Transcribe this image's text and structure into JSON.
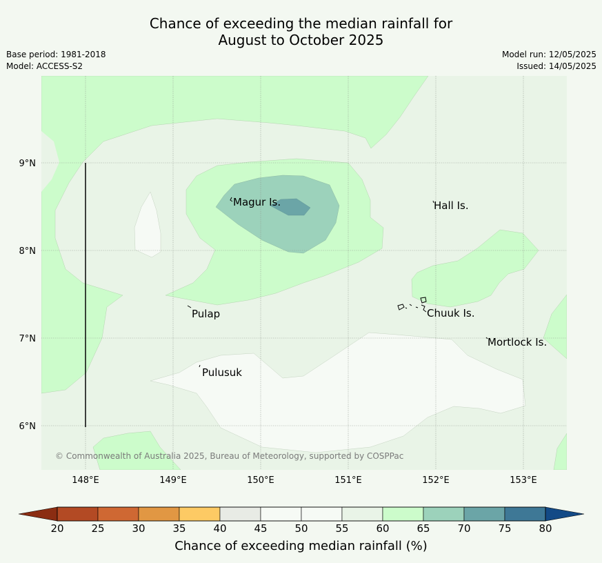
{
  "title": {
    "line1": "Chance of exceeding the median rainfall for",
    "line2": "August to October 2025"
  },
  "meta": {
    "base_period": "Base period: 1981-2018",
    "model": "Model: ACCESS-S2",
    "model_run": "Model run: 12/05/2025",
    "issued": "Issued: 14/05/2025"
  },
  "map": {
    "lat_labels": [
      "9°N",
      "8°N",
      "7°N",
      "6°N"
    ],
    "lon_labels": [
      "148°E",
      "149°E",
      "150°E",
      "151°E",
      "152°E",
      "153°E"
    ],
    "places": [
      "Magur Is.",
      "Hall Is.",
      "Pulap",
      "Chuuk Is.",
      "Mortlock Is.",
      "Pulusuk"
    ],
    "copyright": "© Commonwealth of Australia 2025, Bureau of Meteorology, supported by COSPPac"
  },
  "colorbar": {
    "label": "Chance of exceeding median rainfall (%)",
    "ticks": [
      "20",
      "25",
      "30",
      "35",
      "40",
      "45",
      "50",
      "55",
      "60",
      "65",
      "70",
      "75",
      "80"
    ],
    "colors": [
      "#b34a24",
      "#cf6833",
      "#e19743",
      "#fdca64",
      "#e8ebe5",
      "#f6faf5",
      "#f6faf5",
      "#e9f4e7",
      "#ccfccb",
      "#9cd2bb",
      "#6ba5a7",
      "#3e7896"
    ],
    "under_color": "#8b2d12",
    "over_color": "#134a86"
  },
  "colors": {
    "background": "#f3f8f1",
    "level_40_60": "#e9f4e7",
    "level_45_55": "#f6faf5",
    "level_60_65": "#ccfccb",
    "level_65_70": "#9cd2bb",
    "level_70_75": "#6ba5a7"
  }
}
